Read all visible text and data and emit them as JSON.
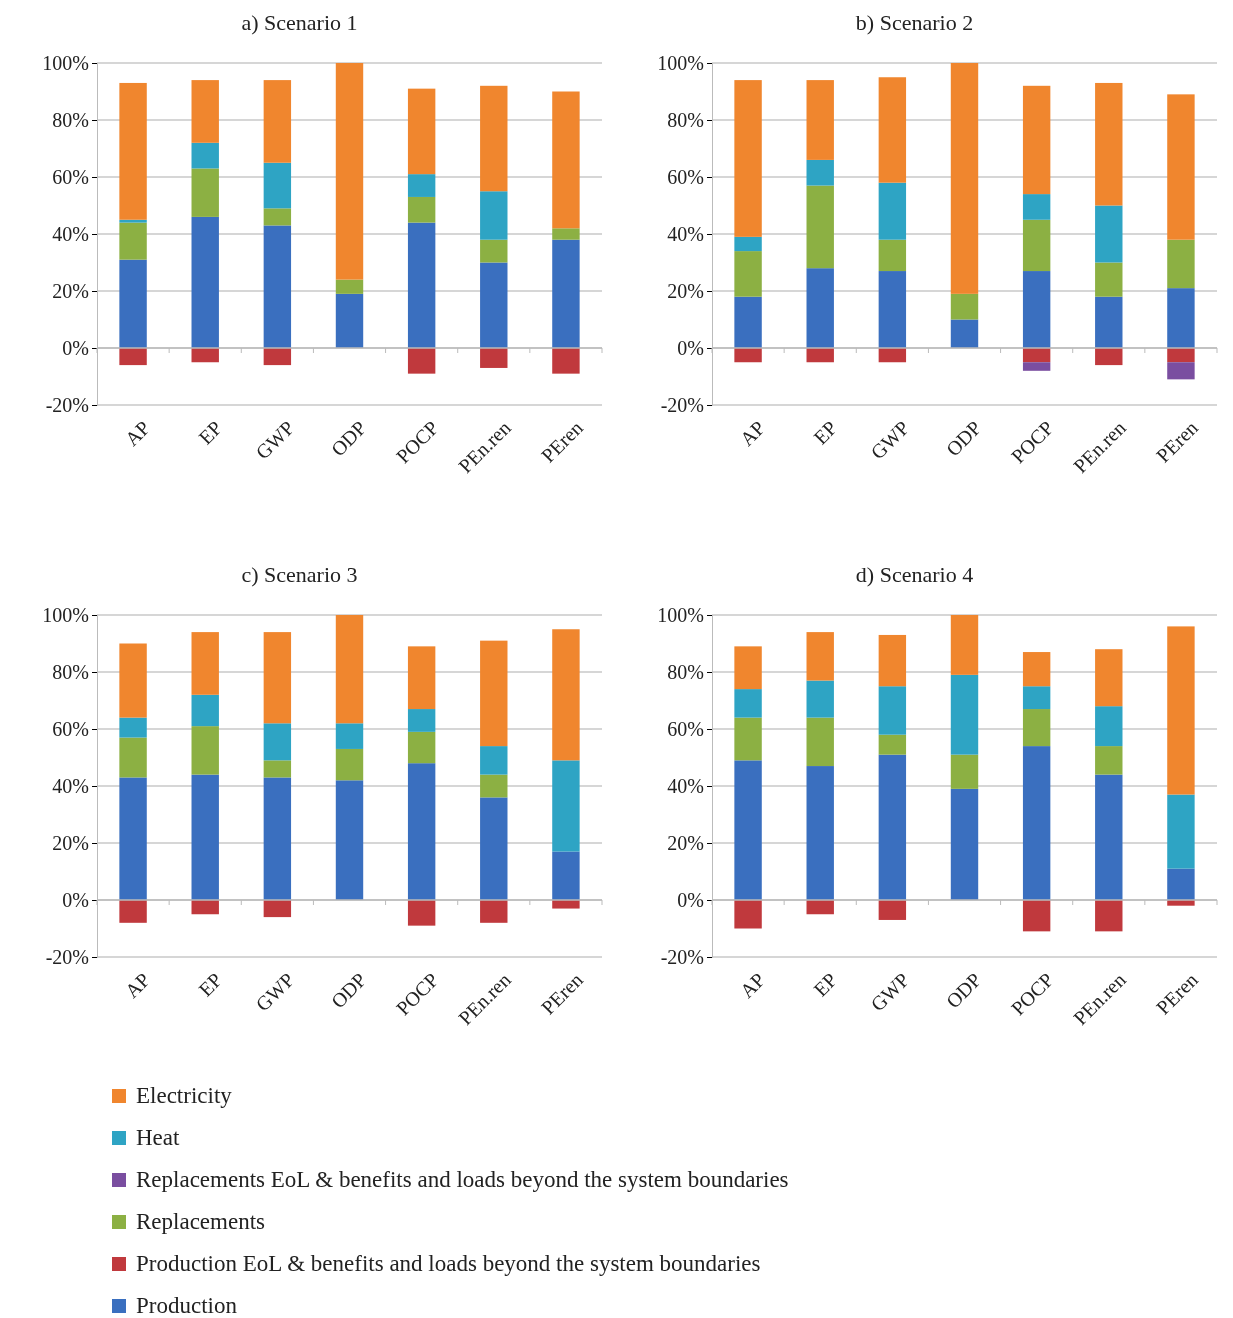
{
  "chart_data": [
    {
      "type": "bar",
      "title": "a) Scenario 1",
      "stacked": true,
      "grid": "y",
      "legend": "bottom",
      "categories": [
        "AP",
        "EP",
        "GWP",
        "ODP",
        "POCP",
        "PEn.ren",
        "PEren"
      ],
      "ylim": [
        -20,
        100
      ],
      "yticks": [
        {
          "value": -20,
          "label": "-20%"
        },
        {
          "value": 0,
          "label": "0%"
        },
        {
          "value": 20,
          "label": "20%"
        },
        {
          "value": 40,
          "label": "40%"
        },
        {
          "value": 60,
          "label": "60%"
        },
        {
          "value": 80,
          "label": "80%"
        },
        {
          "value": 100,
          "label": "100%"
        }
      ],
      "series": [
        {
          "name": "Production",
          "color": "#3a6fbf",
          "values": [
            31,
            46,
            43,
            19,
            44,
            30,
            38
          ]
        },
        {
          "name": "Production EoL & benefits and loads beyond the system boundaries",
          "color": "#c0393d",
          "values": [
            -6,
            -5,
            -6,
            0,
            -9,
            -7,
            -9
          ]
        },
        {
          "name": "Replacements",
          "color": "#8cb043",
          "values": [
            13,
            17,
            6,
            5,
            9,
            8,
            4
          ]
        },
        {
          "name": "Replacements EoL & benefits and loads beyond the system boundaries",
          "color": "#7a4ea0",
          "values": [
            0,
            0,
            0,
            0,
            0,
            0,
            0
          ]
        },
        {
          "name": "Heat",
          "color": "#2ea4c4",
          "values": [
            1,
            9,
            16,
            0,
            8,
            17,
            0
          ]
        },
        {
          "name": "Electricity",
          "color": "#f0862e",
          "values": [
            48,
            22,
            29,
            76,
            30,
            37,
            48
          ]
        }
      ]
    },
    {
      "type": "bar",
      "title": "b) Scenario 2",
      "stacked": true,
      "grid": "y",
      "categories": [
        "AP",
        "EP",
        "GWP",
        "ODP",
        "POCP",
        "PEn.ren",
        "PEren"
      ],
      "ylim": [
        -20,
        100
      ],
      "yticks": [
        {
          "value": -20,
          "label": "-20%"
        },
        {
          "value": 0,
          "label": "0%"
        },
        {
          "value": 20,
          "label": "20%"
        },
        {
          "value": 40,
          "label": "40%"
        },
        {
          "value": 60,
          "label": "60%"
        },
        {
          "value": 80,
          "label": "80%"
        },
        {
          "value": 100,
          "label": "100%"
        }
      ],
      "series": [
        {
          "color": "#3a6fbf",
          "values": [
            18,
            28,
            27,
            10,
            27,
            18,
            21
          ]
        },
        {
          "color": "#c0393d",
          "values": [
            -5,
            -5,
            -5,
            0,
            -5,
            -6,
            -5
          ]
        },
        {
          "color": "#8cb043",
          "values": [
            16,
            29,
            11,
            9,
            18,
            12,
            17
          ]
        },
        {
          "color": "#7a4ea0",
          "values": [
            0,
            0,
            0,
            0,
            -3,
            0,
            -6
          ]
        },
        {
          "color": "#2ea4c4",
          "values": [
            5,
            9,
            20,
            0,
            9,
            20,
            0
          ]
        },
        {
          "color": "#f0862e",
          "values": [
            55,
            28,
            37,
            81,
            38,
            43,
            51
          ]
        }
      ]
    },
    {
      "type": "bar",
      "title": "c) Scenario 3",
      "stacked": true,
      "grid": "y",
      "categories": [
        "AP",
        "EP",
        "GWP",
        "ODP",
        "POCP",
        "PEn.ren",
        "PEren"
      ],
      "ylim": [
        -20,
        100
      ],
      "yticks": [
        {
          "value": -20,
          "label": "-20%"
        },
        {
          "value": 0,
          "label": "0%"
        },
        {
          "value": 20,
          "label": "20%"
        },
        {
          "value": 40,
          "label": "40%"
        },
        {
          "value": 60,
          "label": "60%"
        },
        {
          "value": 80,
          "label": "80%"
        },
        {
          "value": 100,
          "label": "100%"
        }
      ],
      "series": [
        {
          "color": "#3a6fbf",
          "values": [
            43,
            44,
            43,
            42,
            48,
            36,
            17
          ]
        },
        {
          "color": "#c0393d",
          "values": [
            -8,
            -5,
            -6,
            0,
            -9,
            -8,
            -3
          ]
        },
        {
          "color": "#8cb043",
          "values": [
            14,
            17,
            6,
            11,
            11,
            8,
            0
          ]
        },
        {
          "color": "#2ea4c4",
          "values": [
            7,
            11,
            13,
            9,
            8,
            10,
            32
          ]
        },
        {
          "color": "#f0862e",
          "values": [
            26,
            22,
            32,
            38,
            22,
            37,
            46
          ]
        }
      ]
    },
    {
      "type": "bar",
      "title": "d) Scenario 4",
      "stacked": true,
      "grid": "y",
      "categories": [
        "AP",
        "EP",
        "GWP",
        "ODP",
        "POCP",
        "PEn.ren",
        "PEren"
      ],
      "ylim": [
        -20,
        100
      ],
      "yticks": [
        {
          "value": -20,
          "label": "-20%"
        },
        {
          "value": 0,
          "label": "0%"
        },
        {
          "value": 20,
          "label": "20%"
        },
        {
          "value": 40,
          "label": "40%"
        },
        {
          "value": 60,
          "label": "60%"
        },
        {
          "value": 80,
          "label": "80%"
        },
        {
          "value": 100,
          "label": "100%"
        }
      ],
      "series": [
        {
          "color": "#3a6fbf",
          "values": [
            49,
            47,
            51,
            39,
            54,
            44,
            11
          ]
        },
        {
          "color": "#c0393d",
          "values": [
            -10,
            -5,
            -7,
            0,
            -11,
            -11,
            -2
          ]
        },
        {
          "color": "#8cb043",
          "values": [
            15,
            17,
            7,
            12,
            13,
            10,
            0
          ]
        },
        {
          "color": "#2ea4c4",
          "values": [
            10,
            13,
            17,
            28,
            8,
            14,
            26
          ]
        },
        {
          "color": "#f0862e",
          "values": [
            15,
            17,
            18,
            21,
            12,
            20,
            59
          ]
        }
      ]
    }
  ]
}
